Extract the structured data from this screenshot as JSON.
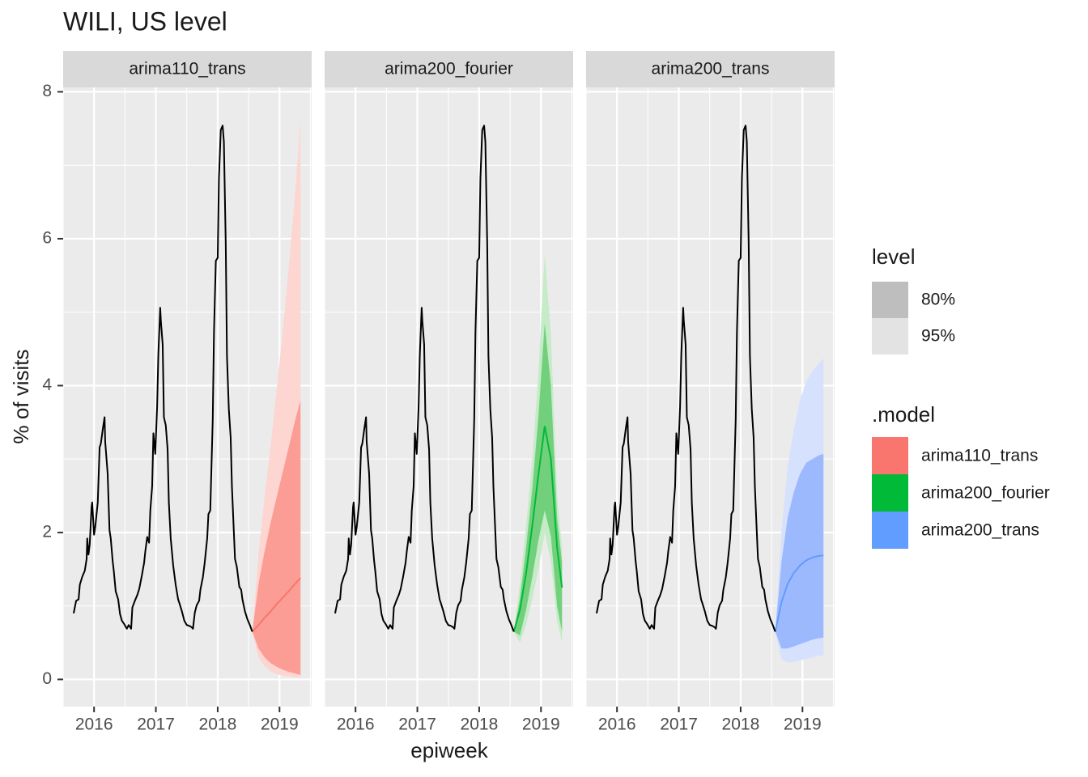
{
  "chart_data": {
    "type": "line",
    "title": "WILI, US level",
    "xlabel": "epiweek",
    "ylabel": "% of visits",
    "xlim": [
      2015.5,
      2019.52
    ],
    "ylim": [
      -0.37,
      8.06
    ],
    "xticks": [
      2016,
      2017,
      2018,
      2019
    ],
    "yticks": [
      0,
      2,
      4,
      6,
      8
    ],
    "grid": true,
    "history": {
      "color": "#000000",
      "x": [
        2015.67,
        2015.71,
        2015.75,
        2015.77,
        2015.81,
        2015.85,
        2015.88,
        2015.89,
        2015.91,
        2015.93,
        2015.96,
        2015.97,
        2016.0,
        2016.02,
        2016.06,
        2016.09,
        2016.11,
        2016.14,
        2016.17,
        2016.18,
        2016.22,
        2016.25,
        2016.27,
        2016.3,
        2016.32,
        2016.35,
        2016.39,
        2016.42,
        2016.45,
        2016.49,
        2016.53,
        2016.56,
        2016.6,
        2016.62,
        2016.66,
        2016.7,
        2016.73,
        2016.77,
        2016.81,
        2016.83,
        2016.86,
        2016.89,
        2016.91,
        2016.94,
        2016.96,
        2016.99,
        2017.02,
        2017.04,
        2017.07,
        2017.08,
        2017.11,
        2017.13,
        2017.16,
        2017.19,
        2017.21,
        2017.24,
        2017.28,
        2017.32,
        2017.36,
        2017.38,
        2017.42,
        2017.46,
        2017.5,
        2017.54,
        2017.58,
        2017.6,
        2017.63,
        2017.66,
        2017.7,
        2017.72,
        2017.76,
        2017.79,
        2017.83,
        2017.85,
        2017.88,
        2017.92,
        2017.94,
        2017.97,
        2018.0,
        2018.02,
        2018.05,
        2018.08,
        2018.1,
        2018.13,
        2018.15,
        2018.18,
        2018.21,
        2018.23,
        2018.26,
        2018.28,
        2018.31,
        2018.35,
        2018.38,
        2018.4,
        2018.44,
        2018.48,
        2018.52,
        2018.56
      ],
      "values": [
        0.9,
        1.07,
        1.09,
        1.29,
        1.4,
        1.48,
        1.64,
        1.92,
        1.7,
        1.84,
        2.35,
        2.41,
        1.97,
        2.08,
        2.41,
        3.16,
        3.21,
        3.4,
        3.57,
        3.24,
        2.8,
        2.03,
        1.92,
        1.62,
        1.47,
        1.2,
        1.09,
        0.89,
        0.8,
        0.75,
        0.69,
        0.74,
        0.69,
        0.98,
        1.07,
        1.15,
        1.23,
        1.4,
        1.59,
        1.75,
        1.94,
        1.86,
        2.3,
        2.63,
        3.35,
        3.07,
        3.71,
        4.42,
        5.06,
        4.89,
        4.56,
        3.57,
        3.46,
        3.13,
        2.41,
        1.92,
        1.55,
        1.29,
        1.09,
        1.04,
        0.93,
        0.8,
        0.74,
        0.73,
        0.71,
        0.69,
        0.91,
        1.01,
        1.07,
        1.22,
        1.39,
        1.59,
        1.92,
        2.25,
        2.3,
        3.54,
        4.73,
        5.7,
        5.74,
        6.82,
        7.48,
        7.54,
        7.32,
        5.94,
        4.4,
        3.68,
        3.29,
        2.63,
        2.03,
        1.64,
        1.53,
        1.26,
        1.22,
        1.09,
        0.93,
        0.82,
        0.74,
        0.65
      ]
    },
    "forecast_x": [
      2018.56,
      2018.66,
      2018.76,
      2018.86,
      2018.96,
      2019.06,
      2019.16,
      2019.26,
      2019.34
    ],
    "series": [
      {
        "name": "arima110_trans",
        "color": "#F8766D",
        "band80_color": "#fb9d95",
        "band95_color": "#fdd5d1",
        "mean": [
          0.65,
          0.74,
          0.84,
          0.93,
          1.03,
          1.12,
          1.21,
          1.31,
          1.38
        ],
        "lo80": [
          0.65,
          0.42,
          0.3,
          0.22,
          0.17,
          0.13,
          0.1,
          0.08,
          0.06
        ],
        "hi80": [
          0.65,
          1.3,
          1.75,
          2.15,
          2.5,
          2.85,
          3.2,
          3.55,
          3.8
        ],
        "lo95": [
          0.65,
          0.3,
          0.18,
          0.11,
          0.07,
          0.05,
          0.04,
          0.03,
          0.03
        ],
        "hi95": [
          0.65,
          1.7,
          2.5,
          3.2,
          4.0,
          4.8,
          5.7,
          6.7,
          7.6
        ]
      },
      {
        "name": "arima200_fourier",
        "color": "#00BA38",
        "band80_color": "#72d07c",
        "band95_color": "#c6ebc8",
        "mean": [
          0.65,
          0.95,
          1.45,
          2.1,
          2.8,
          3.45,
          3.0,
          1.8,
          1.25
        ],
        "lo80": [
          0.65,
          0.6,
          0.95,
          1.4,
          1.9,
          2.3,
          1.95,
          1.0,
          0.65
        ],
        "hi80": [
          0.65,
          1.1,
          1.8,
          2.6,
          3.6,
          4.85,
          4.0,
          2.2,
          1.6
        ],
        "lo95": [
          0.65,
          0.5,
          0.75,
          1.1,
          1.5,
          2.0,
          1.6,
          0.8,
          0.5
        ],
        "hi95": [
          0.65,
          1.3,
          2.1,
          3.0,
          4.2,
          5.8,
          4.7,
          2.5,
          1.8
        ]
      },
      {
        "name": "arima200_trans",
        "color": "#619CFF",
        "band80_color": "#9db9fd",
        "band95_color": "#d6e1fd",
        "mean": [
          0.65,
          1.05,
          1.3,
          1.45,
          1.55,
          1.62,
          1.66,
          1.68,
          1.69
        ],
        "lo80": [
          0.65,
          0.42,
          0.42,
          0.45,
          0.48,
          0.51,
          0.54,
          0.56,
          0.57
        ],
        "hi80": [
          0.65,
          1.6,
          2.2,
          2.55,
          2.8,
          2.95,
          3.0,
          3.05,
          3.07
        ],
        "lo95": [
          0.65,
          0.28,
          0.23,
          0.24,
          0.26,
          0.28,
          0.3,
          0.32,
          0.33
        ],
        "hi95": [
          0.65,
          2.0,
          2.9,
          3.4,
          3.8,
          4.05,
          4.2,
          4.3,
          4.37
        ]
      }
    ],
    "legend": {
      "level_title": "level",
      "levels": [
        "80%",
        "95%"
      ],
      "level_colors": [
        "#bebebe",
        "#e3e3e3"
      ],
      "model_title": ".model"
    }
  }
}
